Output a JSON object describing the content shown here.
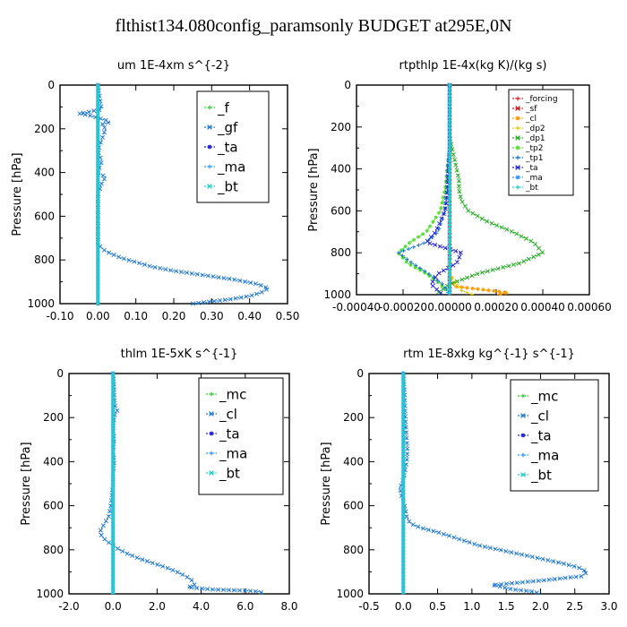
{
  "page": {
    "title": "flthist134.080config_paramsonly  BUDGET at295E,0N"
  },
  "chart_data": [
    {
      "type": "line",
      "title": "um  1E-4xm s^{-2}",
      "ylabel": "Pressure [hPa]",
      "xlim": [
        -0.1,
        0.5
      ],
      "ylim": [
        1000,
        0
      ],
      "xticks": [
        "-0.10",
        "0.00",
        "0.10",
        "0.20",
        "0.30",
        "0.40",
        "0.50"
      ],
      "xtick_values": [
        -0.1,
        0.0,
        0.1,
        0.2,
        0.3,
        0.4,
        0.5
      ],
      "yticks": [
        "0",
        "200",
        "400",
        "600",
        "800",
        "1000"
      ],
      "ytick_values": [
        0,
        200,
        400,
        600,
        800,
        1000
      ],
      "series": [
        {
          "name": "_f",
          "color": "#33cc33",
          "p": [
            0,
            100,
            200,
            300,
            400,
            500,
            600,
            700,
            800,
            900,
            1000
          ],
          "x": [
            0,
            0,
            0,
            0,
            0,
            0,
            0,
            0,
            0,
            0,
            0
          ]
        },
        {
          "name": "_gf",
          "color": "#1f77d0",
          "p": [
            0,
            60,
            110,
            125,
            130,
            140,
            150,
            160,
            170,
            180,
            200,
            250,
            300,
            350,
            400,
            420,
            450,
            500,
            550,
            600,
            650,
            700,
            730,
            760,
            790,
            810,
            830,
            850,
            870,
            890,
            910,
            930,
            950,
            965,
            980,
            990,
            1000
          ],
          "x": [
            0,
            0.005,
            0.01,
            -0.03,
            -0.05,
            -0.02,
            0.0,
            0.02,
            0.03,
            0.01,
            0.02,
            0.01,
            0.0,
            0.01,
            0.0,
            0.02,
            0.01,
            0.0,
            0.0,
            0.0,
            0.0,
            0.0,
            0.0,
            0.02,
            0.06,
            0.1,
            0.14,
            0.2,
            0.28,
            0.36,
            0.42,
            0.45,
            0.43,
            0.4,
            0.35,
            0.3,
            0.25
          ]
        },
        {
          "name": "_ta",
          "color": "#2222cc",
          "p": [
            0,
            200,
            400,
            600,
            800,
            1000
          ],
          "x": [
            0,
            0,
            0,
            0,
            0,
            0
          ]
        },
        {
          "name": "_ma",
          "color": "#3399ff",
          "p": [
            0,
            200,
            400,
            600,
            800,
            1000
          ],
          "x": [
            0,
            0,
            0,
            0,
            0,
            0
          ]
        },
        {
          "name": "_bt",
          "color": "#22cccc",
          "p": [
            0,
            200,
            400,
            600,
            800,
            1000
          ],
          "x": [
            0,
            0,
            0,
            0,
            0,
            0
          ]
        }
      ]
    },
    {
      "type": "line",
      "title": "rtpthlp  1E-4x(kg K)/(kg s)",
      "ylabel": "Pressure [hPa]",
      "xlim": [
        -0.0004,
        0.0006
      ],
      "ylim": [
        1000,
        0
      ],
      "xticks": [
        "-0.00040",
        "-0.00020",
        "0.00000",
        "0.00020",
        "0.00040",
        "0.00060"
      ],
      "xtick_values": [
        -0.0004,
        -0.0002,
        0.0,
        0.0002,
        0.0004,
        0.0006
      ],
      "yticks": [
        "0",
        "200",
        "400",
        "600",
        "800",
        "1000"
      ],
      "ytick_values": [
        0,
        200,
        400,
        600,
        800,
        1000
      ],
      "series": [
        {
          "name": "_forcing",
          "color": "#dd2222",
          "p": [
            0,
            200,
            400,
            600,
            800,
            1000
          ],
          "x": [
            0,
            0,
            0,
            0,
            0,
            0
          ]
        },
        {
          "name": "_sf",
          "color": "#cc1111",
          "p": [
            0,
            200,
            400,
            600,
            800,
            1000
          ],
          "x": [
            0,
            0,
            0,
            0,
            0,
            0
          ]
        },
        {
          "name": "_cl",
          "color": "#ff9900",
          "p": [
            0,
            900,
            960,
            990,
            1000
          ],
          "x": [
            0,
            0,
            2e-05,
            0.00025,
            0.0002
          ]
        },
        {
          "name": "_dp2",
          "color": "#ddcc00",
          "p": [
            0,
            900,
            980,
            1000
          ],
          "x": [
            0,
            0,
            5e-05,
            0.0001
          ]
        },
        {
          "name": "_dp1",
          "color": "#22aa22",
          "p": [
            0,
            250,
            300,
            350,
            400,
            450,
            500,
            550,
            600,
            650,
            700,
            750,
            800,
            850,
            900,
            950,
            990
          ],
          "x": [
            0,
            0.0,
            1e-05,
            2e-05,
            3e-05,
            4e-05,
            4e-05,
            5e-05,
            8e-05,
            0.00016,
            0.00027,
            0.00036,
            0.0004,
            0.0003,
            0.00012,
            0.0,
            -5e-05
          ]
        },
        {
          "name": "_tp2",
          "color": "#55dd33",
          "p": [
            0,
            300,
            400,
            500,
            600,
            700,
            750,
            800,
            850,
            900,
            950,
            990
          ],
          "x": [
            0,
            0.0,
            -1e-05,
            -2e-05,
            -4e-05,
            -0.0001,
            -0.00017,
            -0.00022,
            -0.00018,
            -0.0001,
            -4e-05,
            0.0
          ]
        },
        {
          "name": "_tp1",
          "color": "#1177cc",
          "p": [
            0,
            300,
            400,
            500,
            600,
            700,
            750,
            800,
            850,
            900,
            950,
            1000
          ],
          "x": [
            0,
            0.0,
            -1e-05,
            -1e-05,
            -2e-05,
            -5e-05,
            -0.0001,
            -0.00022,
            -0.00016,
            -9e-05,
            -3e-05,
            0.0
          ]
        },
        {
          "name": "_ta",
          "color": "#2222cc",
          "p": [
            0,
            300,
            500,
            600,
            700,
            750,
            800,
            850,
            900,
            950,
            1000
          ],
          "x": [
            0,
            0.0,
            -1e-05,
            -2e-05,
            -6e-05,
            -0.0001,
            5e-05,
            3e-05,
            -5e-05,
            -8e-05,
            -3e-05
          ]
        },
        {
          "name": "_ma",
          "color": "#3399ff",
          "p": [
            0,
            500,
            1000
          ],
          "x": [
            0,
            0,
            0
          ]
        },
        {
          "name": "_bt",
          "color": "#22cccc",
          "p": [
            0,
            500,
            1000
          ],
          "x": [
            0,
            0,
            0
          ]
        }
      ]
    },
    {
      "type": "line",
      "title": "thlm  1E-5xK s^{-1}",
      "ylabel": "Pressure [hPa]",
      "xlim": [
        -2.0,
        8.0
      ],
      "ylim": [
        1000,
        0
      ],
      "xticks": [
        "-2.0",
        "0.0",
        "2.0",
        "4.0",
        "6.0",
        "8.0"
      ],
      "xtick_values": [
        -2,
        0,
        2,
        4,
        6,
        8
      ],
      "yticks": [
        "0",
        "200",
        "400",
        "600",
        "800",
        "1000"
      ],
      "ytick_values": [
        0,
        200,
        400,
        600,
        800,
        1000
      ],
      "series": [
        {
          "name": "_mc",
          "color": "#33cc33",
          "p": [
            0,
            200,
            400,
            600,
            800,
            1000
          ],
          "x": [
            0,
            0,
            0,
            0,
            0,
            0
          ]
        },
        {
          "name": "_cl",
          "color": "#1f77d0",
          "p": [
            0,
            60,
            100,
            150,
            170,
            180,
            200,
            250,
            300,
            350,
            400,
            450,
            500,
            550,
            600,
            650,
            700,
            720,
            740,
            760,
            780,
            800,
            820,
            840,
            860,
            880,
            900,
            920,
            940,
            960,
            970,
            980,
            985,
            990,
            995,
            1000
          ],
          "x": [
            0,
            0.05,
            0.05,
            0.1,
            0.2,
            0.1,
            0.05,
            0.0,
            0.05,
            0.0,
            0.05,
            0.0,
            0.0,
            -0.05,
            -0.1,
            -0.2,
            -0.5,
            -0.6,
            -0.5,
            -0.3,
            0.0,
            0.3,
            0.7,
            1.2,
            1.8,
            2.4,
            2.9,
            3.3,
            3.6,
            3.7,
            3.4,
            4.5,
            6.0,
            6.6,
            6.8,
            6.7
          ]
        },
        {
          "name": "_ta",
          "color": "#2222cc",
          "p": [
            0,
            200,
            400,
            600,
            800,
            1000
          ],
          "x": [
            0,
            0,
            0,
            0,
            0,
            0
          ]
        },
        {
          "name": "_ma",
          "color": "#3399ff",
          "p": [
            0,
            200,
            400,
            600,
            800,
            1000
          ],
          "x": [
            0,
            0,
            0,
            0,
            0,
            0
          ]
        },
        {
          "name": "_bt",
          "color": "#22cccc",
          "p": [
            0,
            200,
            400,
            600,
            800,
            1000
          ],
          "x": [
            0,
            0,
            0,
            0,
            0,
            0
          ]
        }
      ]
    },
    {
      "type": "line",
      "title": "rtm  1E-8xkg kg^{-1} s^{-1}",
      "ylabel": "Pressure [hPa]",
      "xlim": [
        -0.5,
        3.0
      ],
      "ylim": [
        1000,
        0
      ],
      "xticks": [
        "-0.5",
        "0.0",
        "0.5",
        "1.0",
        "1.5",
        "2.0",
        "2.5",
        "3.0"
      ],
      "xtick_values": [
        -0.5,
        0,
        0.5,
        1.0,
        1.5,
        2.0,
        2.5,
        3.0
      ],
      "yticks": [
        "0",
        "200",
        "400",
        "600",
        "800",
        "1000"
      ],
      "ytick_values": [
        0,
        200,
        400,
        600,
        800,
        1000
      ],
      "series": [
        {
          "name": "_mc",
          "color": "#33cc33",
          "p": [
            0,
            200,
            400,
            600,
            800,
            1000
          ],
          "x": [
            0,
            0,
            0,
            0,
            0,
            0
          ]
        },
        {
          "name": "_cl",
          "color": "#1f77d0",
          "p": [
            0,
            100,
            200,
            300,
            350,
            400,
            450,
            500,
            520,
            550,
            600,
            650,
            680,
            700,
            720,
            750,
            780,
            800,
            820,
            840,
            860,
            880,
            900,
            920,
            940,
            960,
            980,
            990,
            1000
          ],
          "x": [
            0,
            0.02,
            0.03,
            0.05,
            0.06,
            0.05,
            0.02,
            -0.02,
            -0.05,
            -0.03,
            0.02,
            0.05,
            0.1,
            0.25,
            0.5,
            0.8,
            1.1,
            1.4,
            1.7,
            2.0,
            2.3,
            2.55,
            2.68,
            2.6,
            2.0,
            1.3,
            1.6,
            1.9,
            2.0
          ]
        },
        {
          "name": "_ta",
          "color": "#2222cc",
          "p": [
            0,
            200,
            400,
            600,
            800,
            1000
          ],
          "x": [
            0,
            0,
            0,
            0,
            0,
            0
          ]
        },
        {
          "name": "_ma",
          "color": "#3399ff",
          "p": [
            0,
            200,
            400,
            600,
            800,
            1000
          ],
          "x": [
            0,
            0,
            0,
            0,
            0,
            0
          ]
        },
        {
          "name": "_bt",
          "color": "#22cccc",
          "p": [
            0,
            200,
            400,
            600,
            800,
            1000
          ],
          "x": [
            0,
            0,
            0,
            0,
            0,
            0
          ]
        }
      ]
    }
  ]
}
